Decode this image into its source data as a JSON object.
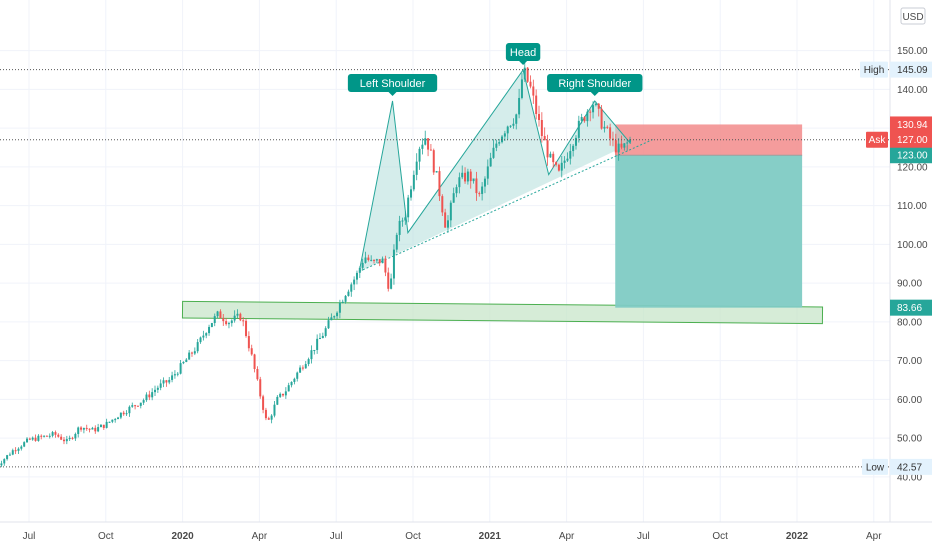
{
  "chart_data": {
    "type": "candlestick",
    "currency": "USD",
    "y_axis": {
      "min": 36,
      "max": 152,
      "ticks": [
        40,
        50,
        60,
        70,
        80,
        90,
        100,
        110,
        120,
        130,
        140,
        150
      ],
      "tick_labels": [
        "40.00",
        "50.00",
        "60.00",
        "70.00",
        "80.00",
        "90.00",
        "100.00",
        "110.00",
        "120.00",
        "130.00",
        "140.00",
        "150.00"
      ]
    },
    "x_axis": {
      "labels": [
        {
          "text": "Jul",
          "t": 0,
          "bold": false
        },
        {
          "text": "Oct",
          "t": 3,
          "bold": false
        },
        {
          "text": "2020",
          "t": 6,
          "bold": true
        },
        {
          "text": "Apr",
          "t": 9,
          "bold": false
        },
        {
          "text": "Jul",
          "t": 12,
          "bold": false
        },
        {
          "text": "Oct",
          "t": 15,
          "bold": false
        },
        {
          "text": "2021",
          "t": 18,
          "bold": true
        },
        {
          "text": "Apr",
          "t": 21,
          "bold": false
        },
        {
          "text": "Jul",
          "t": 24,
          "bold": false
        },
        {
          "text": "Oct",
          "t": 27,
          "bold": false
        },
        {
          "text": "2022",
          "t": 30,
          "bold": true
        },
        {
          "text": "Apr",
          "t": 33,
          "bold": false
        }
      ]
    },
    "price_path": [
      [
        -1.3,
        42.6
      ],
      [
        -0.6,
        47
      ],
      [
        0,
        49.5
      ],
      [
        1,
        51
      ],
      [
        1.5,
        49
      ],
      [
        2,
        53
      ],
      [
        2.5,
        52
      ],
      [
        3,
        53.5
      ],
      [
        3.5,
        56
      ],
      [
        4,
        58
      ],
      [
        4.5,
        60
      ],
      [
        5,
        63
      ],
      [
        5.5,
        65
      ],
      [
        6,
        69
      ],
      [
        6.6,
        74
      ],
      [
        7,
        79
      ],
      [
        7.4,
        82
      ],
      [
        7.8,
        80
      ],
      [
        8.3,
        81.5
      ],
      [
        8.7,
        71
      ],
      [
        9,
        62
      ],
      [
        9.3,
        53.5
      ],
      [
        9.7,
        60
      ],
      [
        10,
        62
      ],
      [
        10.5,
        67
      ],
      [
        11,
        72
      ],
      [
        11.5,
        77
      ],
      [
        12,
        83
      ],
      [
        12.4,
        88
      ],
      [
        12.8,
        92
      ],
      [
        13.1,
        97
      ],
      [
        13.4,
        95
      ],
      [
        13.8,
        96
      ],
      [
        14.1,
        88
      ],
      [
        14.35,
        103
      ],
      [
        14.7,
        108
      ],
      [
        15.2,
        125
      ],
      [
        15.5,
        128
      ],
      [
        15.9,
        118
      ],
      [
        16.3,
        104
      ],
      [
        16.7,
        116
      ],
      [
        17.2,
        118
      ],
      [
        17.6,
        112
      ],
      [
        18,
        121
      ],
      [
        18.3,
        127
      ],
      [
        18.7,
        131
      ],
      [
        19.1,
        134
      ],
      [
        19.3,
        145
      ],
      [
        19.6,
        140
      ],
      [
        20,
        129
      ],
      [
        20.4,
        121
      ],
      [
        20.7,
        118
      ],
      [
        21,
        123
      ],
      [
        21.3,
        128
      ],
      [
        21.6,
        132
      ],
      [
        22,
        137
      ],
      [
        22.4,
        131
      ],
      [
        22.8,
        126
      ],
      [
        23.1,
        124
      ],
      [
        23.5,
        127
      ]
    ],
    "pattern": {
      "name": "head-and-shoulders",
      "labels": [
        "Left Shoulder",
        "Head",
        "Right Shoulder"
      ],
      "points": [
        [
          12.9,
          93
        ],
        [
          14.2,
          137
        ],
        [
          14.8,
          103
        ],
        [
          19.3,
          145
        ],
        [
          20.3,
          118
        ],
        [
          22.1,
          137
        ],
        [
          23.5,
          126
        ]
      ],
      "neckline": [
        [
          12.9,
          93
        ],
        [
          23.5,
          126
        ]
      ]
    },
    "support_zone": {
      "t_start": 6.0,
      "t_end": 31.0,
      "top": 85.8,
      "bottom": 81.5
    },
    "position": {
      "t_start": 22.9,
      "t_end": 30.2,
      "stop": 130.94,
      "entry": 123.0,
      "target": 83.66
    },
    "lines": {
      "high": 145.09,
      "low": 42.57,
      "ask": 127.0
    },
    "price_tags": {
      "high_label": "High",
      "high_value": "145.09",
      "low_label": "Low",
      "low_value": "42.57",
      "ask_label": "Ask",
      "ask_value": "127.00",
      "stop_value": "130.94",
      "entry_value": "123.00",
      "target_value": "83.66"
    },
    "colors": {
      "up": "#26a69a",
      "down": "#ef5350",
      "pattern_fill": "#b2dfdb",
      "zone_fill": "#c8e6c9",
      "zone_stroke": "#4caf50",
      "stop_fill": "#f28b8b",
      "target_fill": "#80cbc4",
      "label_bg": "#009688"
    }
  }
}
